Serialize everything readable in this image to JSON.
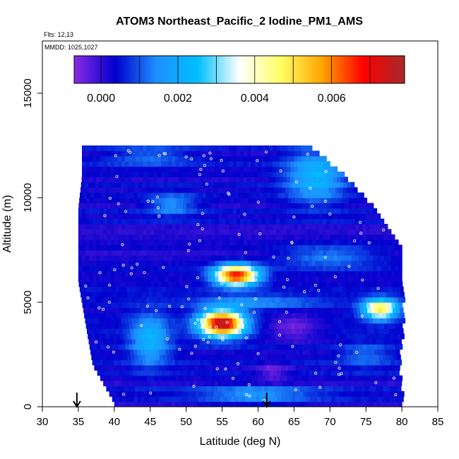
{
  "chart_data": {
    "type": "heatmap",
    "title": "ATOM3 Northeast_Pacific_2 Iodine_PM1_AMS",
    "info_lines": [
      "Flts: 12,13",
      "MMDD: 1025,1027"
    ],
    "xlabel": "Latitude (deg N)",
    "ylabel": "Altitude (m)",
    "xlim": [
      30,
      85
    ],
    "ylim": [
      0,
      17500
    ],
    "x_ticks": [
      30,
      35,
      40,
      45,
      50,
      55,
      60,
      65,
      70,
      75,
      80,
      85
    ],
    "y_ticks": [
      0,
      5000,
      10000,
      15000
    ],
    "grid": false,
    "colorbar": {
      "range": [
        -0.0007,
        0.0079
      ],
      "ticks": [
        0.0,
        0.002,
        0.004,
        0.006
      ],
      "tick_labels": [
        "0.000",
        "0.002",
        "0.004",
        "0.006"
      ],
      "minor_ticks": [
        0.001,
        0.003,
        0.005,
        0.007
      ],
      "colors": [
        "#8a2be2",
        "#0000cd",
        "#1e90ff",
        "#00bfff",
        "#ffffff",
        "#ffff66",
        "#ffa500",
        "#ff0000",
        "#a52a2a"
      ]
    },
    "background_value": 0.0003,
    "altitude_extent": [
      {
        "alt": 200,
        "lat_min": 40.0,
        "lat_max": 80.0
      },
      {
        "alt": 2000,
        "lat_min": 37.0,
        "lat_max": 79.5
      },
      {
        "alt": 4000,
        "lat_min": 36.0,
        "lat_max": 80.0
      },
      {
        "alt": 6000,
        "lat_min": 35.0,
        "lat_max": 80.0
      },
      {
        "alt": 7500,
        "lat_min": 35.0,
        "lat_max": 80.0
      },
      {
        "alt": 9500,
        "lat_min": 35.0,
        "lat_max": 76.0
      },
      {
        "alt": 11000,
        "lat_min": 35.5,
        "lat_max": 72.0
      },
      {
        "alt": 12500,
        "lat_min": 35.5,
        "lat_max": 67.0
      }
    ],
    "features": [
      {
        "lat": 55.0,
        "alt": 4000,
        "value": 0.0078,
        "lat_width": 4.5,
        "alt_width": 900
      },
      {
        "lat": 57.0,
        "alt": 6300,
        "value": 0.007,
        "lat_width": 4.5,
        "alt_width": 700
      },
      {
        "lat": 77.0,
        "alt": 4700,
        "value": 0.005,
        "lat_width": 3.5,
        "alt_width": 700
      },
      {
        "lat": 45.0,
        "alt": 3200,
        "value": 0.0022,
        "lat_width": 4.0,
        "alt_width": 1800
      },
      {
        "lat": 65.0,
        "alt": 3800,
        "value": -0.0006,
        "lat_width": 5.0,
        "alt_width": 900
      },
      {
        "lat": 62.0,
        "alt": 1700,
        "value": -0.0005,
        "lat_width": 3.5,
        "alt_width": 700
      },
      {
        "lat": 68.0,
        "alt": 11000,
        "value": 0.0023,
        "lat_width": 6.0,
        "alt_width": 1800
      },
      {
        "lat": 48.0,
        "alt": 9700,
        "value": 0.0016,
        "lat_width": 5.0,
        "alt_width": 800
      },
      {
        "lat": 60.0,
        "alt": 600,
        "value": 0.0016,
        "lat_width": 12.0,
        "alt_width": 600
      },
      {
        "lat": 70.0,
        "alt": 7200,
        "value": 0.0015,
        "lat_width": 10.0,
        "alt_width": 800
      },
      {
        "lat": 45.0,
        "alt": 12000,
        "value": 0.0012,
        "lat_width": 8.0,
        "alt_width": 700
      },
      {
        "lat": 75.0,
        "alt": 2500,
        "value": 0.0012,
        "lat_width": 5.0,
        "alt_width": 900
      },
      {
        "lat": 60.0,
        "alt": 5000,
        "value": 0.0014,
        "lat_width": 12.0,
        "alt_width": 500
      }
    ],
    "arrows": [
      {
        "lat": 34.8
      },
      {
        "lat": 61.2
      }
    ]
  }
}
